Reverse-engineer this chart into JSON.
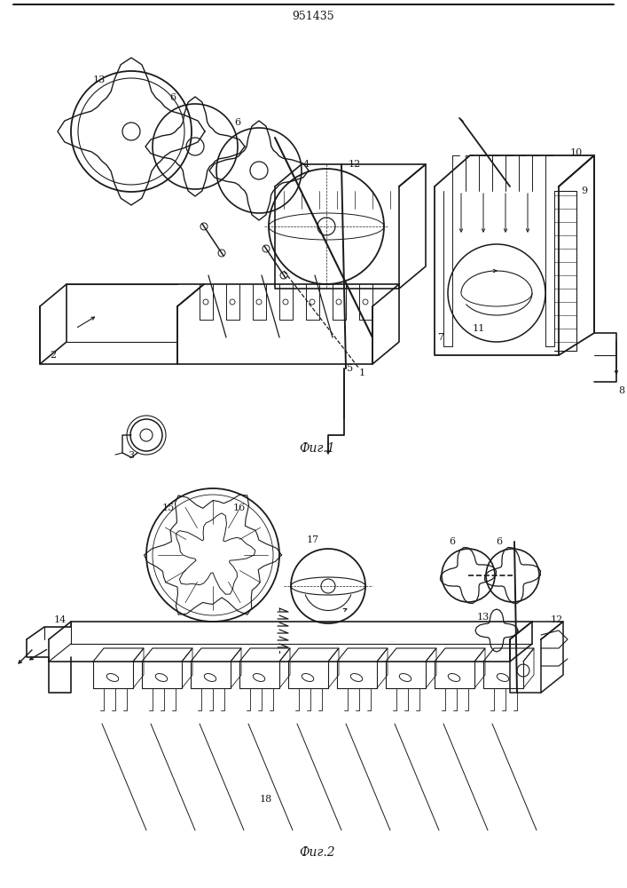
{
  "title": "951435",
  "bg_color": "#ffffff",
  "line_color": "#1a1a1a",
  "fig1_caption": "Фиг.1",
  "fig2_caption": "Фиг.2",
  "fig_width": 7.07,
  "fig_height": 10.0,
  "dpi": 100
}
